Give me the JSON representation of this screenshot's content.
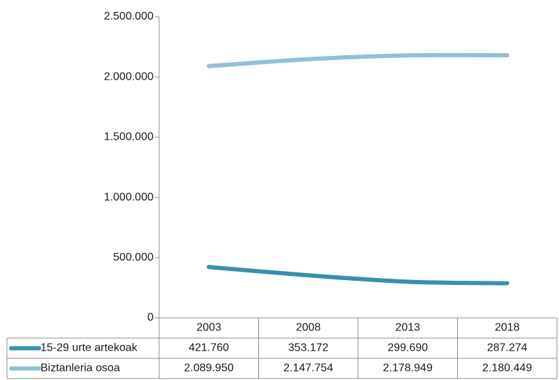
{
  "chart_data": {
    "type": "line",
    "categories": [
      "2003",
      "2008",
      "2013",
      "2018"
    ],
    "y_ticks": [
      "0",
      "500.000",
      "1.000.000",
      "1.500.000",
      "2.000.000",
      "2.500.000"
    ],
    "ylim": [
      0,
      2500000
    ],
    "grid": false,
    "legend_placement": "data table",
    "series": [
      {
        "name": "15-29 urte artekoak",
        "color": "#3a8fab",
        "values": [
          421760,
          353172,
          299690,
          287274
        ],
        "labels": [
          "421.760",
          "353.172",
          "299.690",
          "287.274"
        ]
      },
      {
        "name": "Biztanleria osoa",
        "color": "#90c0d3",
        "values": [
          2089950,
          2147754,
          2178949,
          2180449
        ],
        "labels": [
          "2.089.950",
          "2.147.754",
          "2.178.949",
          "2.180.449"
        ]
      }
    ]
  }
}
